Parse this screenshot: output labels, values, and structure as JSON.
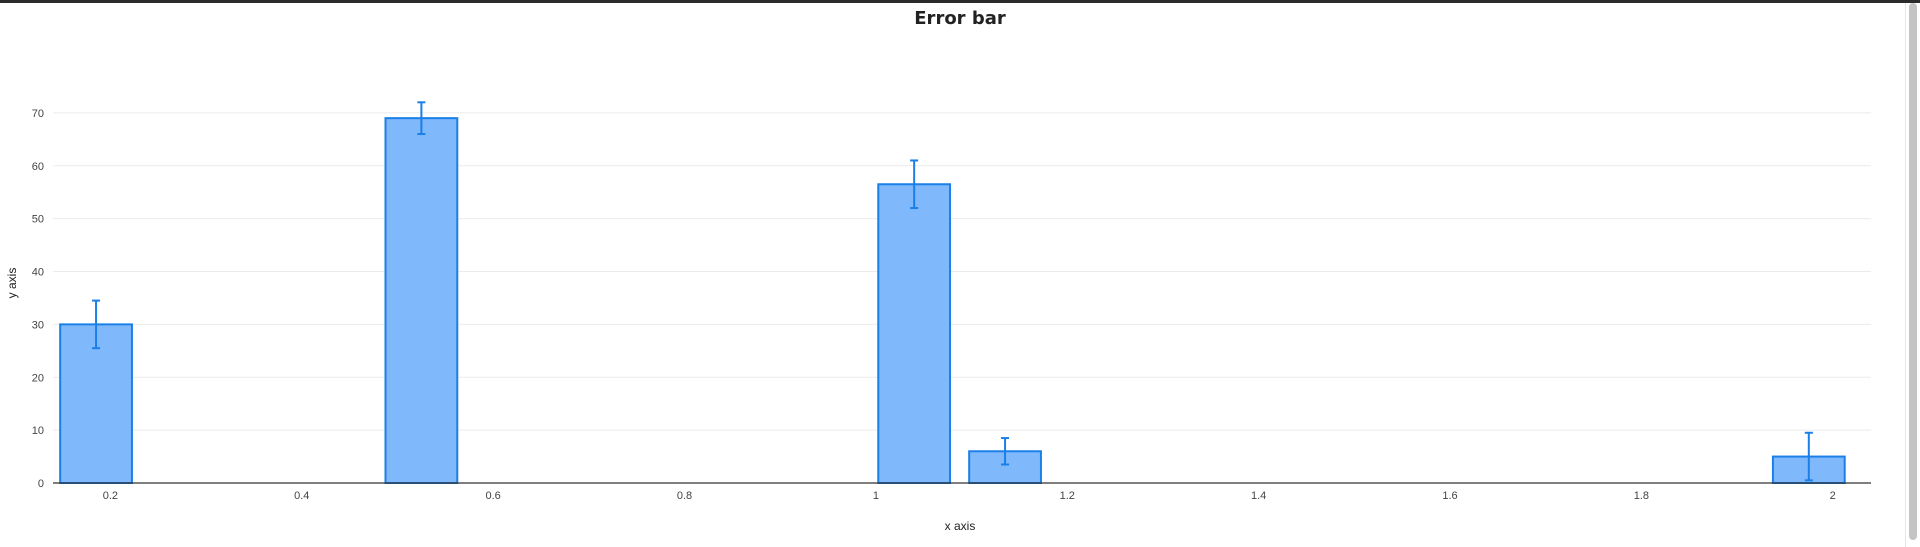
{
  "chart_data": {
    "type": "bar",
    "title": "Error bar",
    "xlabel": "x axis",
    "ylabel": "y axis",
    "xlim": [
      0.14,
      2.04
    ],
    "ylim": [
      0,
      80
    ],
    "x_ticks": [
      0.2,
      0.4,
      0.6,
      0.8,
      1,
      1.2,
      1.4,
      1.6,
      1.8,
      2
    ],
    "x_tick_labels": [
      "0.2",
      "0.4",
      "0.6",
      "0.8",
      "1",
      "1.2",
      "1.4",
      "1.6",
      "1.8",
      "2"
    ],
    "y_ticks": [
      0,
      10,
      20,
      30,
      40,
      50,
      60,
      70
    ],
    "y_tick_labels": [
      "0",
      "10",
      "20",
      "30",
      "40",
      "50",
      "60",
      "70"
    ],
    "grid": true,
    "bar_width": 0.075,
    "series": [
      {
        "x": [
          0.185,
          0.525,
          1.04,
          1.135,
          1.975
        ],
        "values": [
          30,
          69,
          56.5,
          6,
          5
        ],
        "error": [
          4.5,
          3,
          4.5,
          2.5,
          4.5
        ]
      }
    ],
    "colors": {
      "fill": "#80b8fc",
      "stroke": "#1a7fe6",
      "error": "#1a7fe6"
    }
  }
}
